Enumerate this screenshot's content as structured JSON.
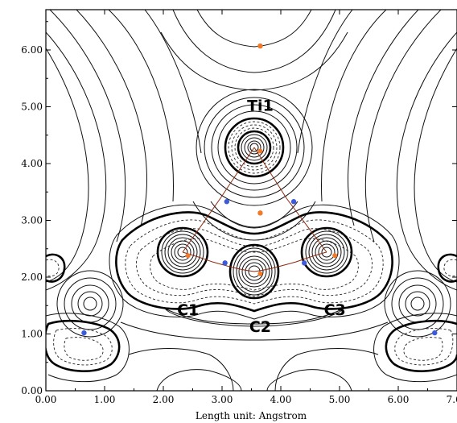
{
  "x_axis": {
    "label": "Length unit: Angstrom",
    "ticks": [
      "0.00",
      "1.00",
      "2.00",
      "3.00",
      "4.00",
      "5.00",
      "6.00",
      "7.00"
    ]
  },
  "y_axis": {
    "ticks": [
      "0.00",
      "1.00",
      "2.00",
      "3.00",
      "4.00",
      "5.00",
      "6.00"
    ]
  },
  "atoms": [
    {
      "label": "Ti1",
      "x": 3.65,
      "y": 4.22
    },
    {
      "label": "C1",
      "x": 2.42,
      "y": 2.38
    },
    {
      "label": "C2",
      "x": 3.65,
      "y": 2.06
    },
    {
      "label": "C3",
      "x": 4.92,
      "y": 2.38
    }
  ],
  "bond_critical_points": [
    {
      "x": 3.05,
      "y": 2.25
    },
    {
      "x": 4.4,
      "y": 2.25
    },
    {
      "x": 3.08,
      "y": 3.33
    },
    {
      "x": 4.22,
      "y": 3.33
    },
    {
      "x": 0.65,
      "y": 1.02
    },
    {
      "x": 6.62,
      "y": 1.02
    }
  ],
  "ring_critical_points": [
    {
      "x": 3.65,
      "y": 6.07
    },
    {
      "x": 3.65,
      "y": 3.13
    }
  ],
  "colors": {
    "bond_path": "#8b2a10",
    "bond_critical_point": "#3b5bdb",
    "ring_critical_point": "#f07a2a"
  }
}
